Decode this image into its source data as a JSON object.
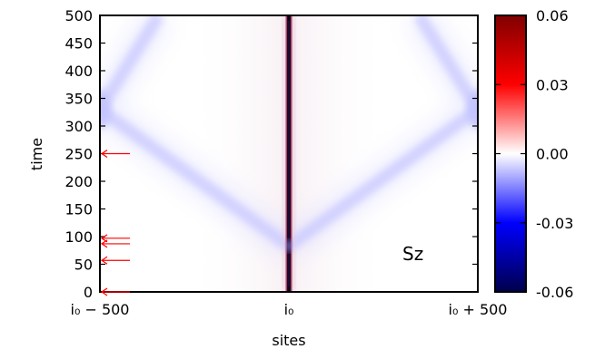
{
  "chart_data": {
    "type": "heatmap",
    "title": "",
    "xlabel": "sites",
    "ylabel": "time",
    "annotation": "Sz",
    "x_ticks": [
      {
        "pos": -500,
        "label": "i₀ − 500"
      },
      {
        "pos": 0,
        "label": "i₀"
      },
      {
        "pos": 500,
        "label": "i₀ + 500"
      }
    ],
    "xlim": [
      -500,
      500
    ],
    "ylim": [
      0,
      500
    ],
    "y_ticks": [
      "0",
      "50",
      "100",
      "150",
      "200",
      "250",
      "300",
      "350",
      "400",
      "450",
      "500"
    ],
    "y_tick_values": [
      0,
      50,
      100,
      150,
      200,
      250,
      300,
      350,
      400,
      450,
      500
    ],
    "colorbar": {
      "range": [
        -0.06,
        0.06
      ],
      "ticks": [
        "0.06",
        "0.03",
        "0.00",
        "-0.03",
        "-0.06"
      ],
      "tick_values": [
        0.06,
        0.03,
        0.0,
        -0.03,
        -0.06
      ],
      "colormap": "seismic"
    },
    "features": {
      "central_line_site": 0,
      "light_cone_origin_time": 83,
      "light_cone_reflection_time": 330
    },
    "arrow_times": [
      0,
      57,
      87,
      97,
      250
    ],
    "colors": {
      "negative_dark": "#00004c",
      "negative": "#0000ff",
      "zero": "#ffffff",
      "positive": "#ff0000",
      "positive_dark": "#800000",
      "arrow": "#ff0000"
    }
  }
}
